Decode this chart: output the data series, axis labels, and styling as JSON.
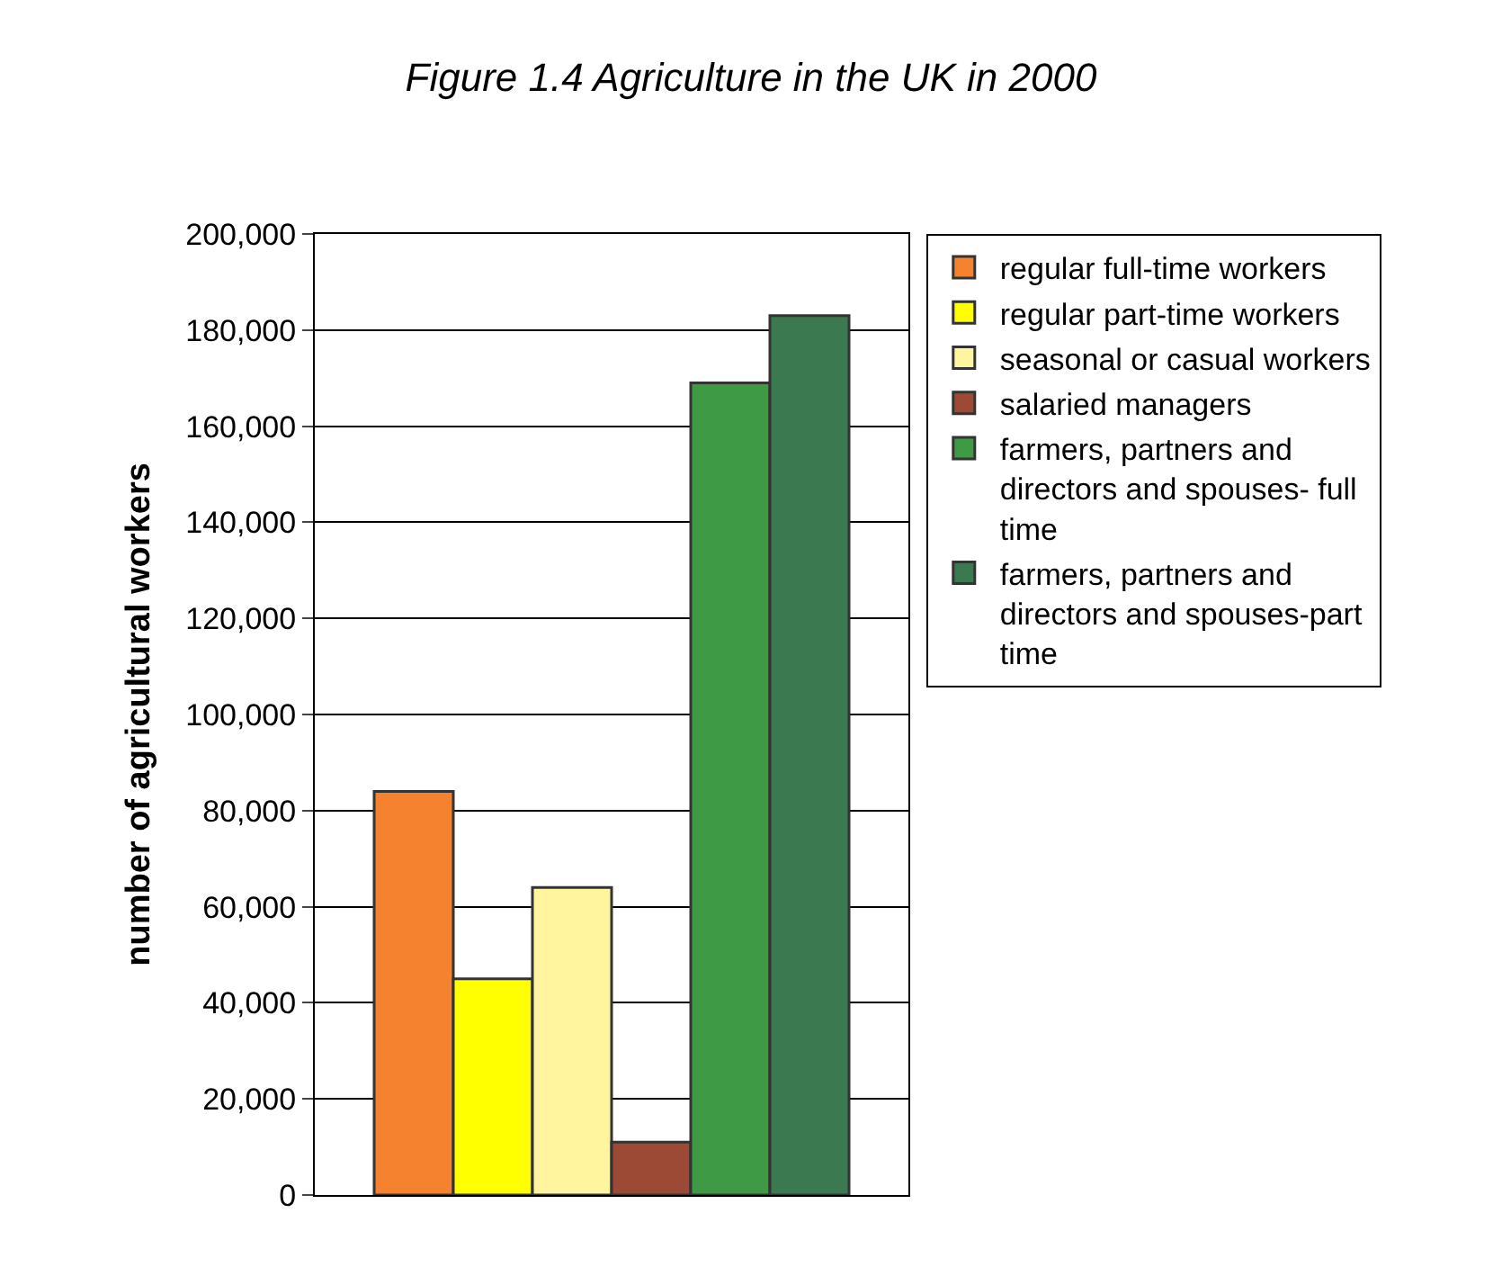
{
  "chart_data": {
    "type": "bar",
    "title": "Figure 1.4 Agriculture in the UK in 2000",
    "ylabel": "number of agricultural workers",
    "categories": [
      null
    ],
    "series": [
      {
        "name": "regular full-time workers",
        "color": "#f5822e",
        "values": [
          84000
        ]
      },
      {
        "name": "regular part-time workers",
        "color": "#ffff00",
        "values": [
          45000
        ]
      },
      {
        "name": "seasonal or casual workers",
        "color": "#fff59e",
        "values": [
          64000
        ]
      },
      {
        "name": "salaried managers",
        "color": "#9c4a35",
        "values": [
          11000
        ]
      },
      {
        "name": "farmers, partners and directors and spouses- full time",
        "color": "#3f9a45",
        "values": [
          169000
        ]
      },
      {
        "name": "farmers, partners and directors and spouses-part time",
        "color": "#3b7a50",
        "values": [
          183000
        ]
      }
    ],
    "ylim": [
      0,
      200000
    ],
    "yticks": [
      {
        "value": 0,
        "label": "0"
      },
      {
        "value": 20000,
        "label": "20,000"
      },
      {
        "value": 40000,
        "label": "40,000"
      },
      {
        "value": 60000,
        "label": "60,000"
      },
      {
        "value": 80000,
        "label": "80,000"
      },
      {
        "value": 100000,
        "label": "100,000"
      },
      {
        "value": 120000,
        "label": "120,000"
      },
      {
        "value": 140000,
        "label": "140,000"
      },
      {
        "value": 160000,
        "label": "160,000"
      },
      {
        "value": 180000,
        "label": "180,000"
      },
      {
        "value": 200000,
        "label": "200,000"
      }
    ],
    "grid": "y",
    "legend": "right"
  }
}
